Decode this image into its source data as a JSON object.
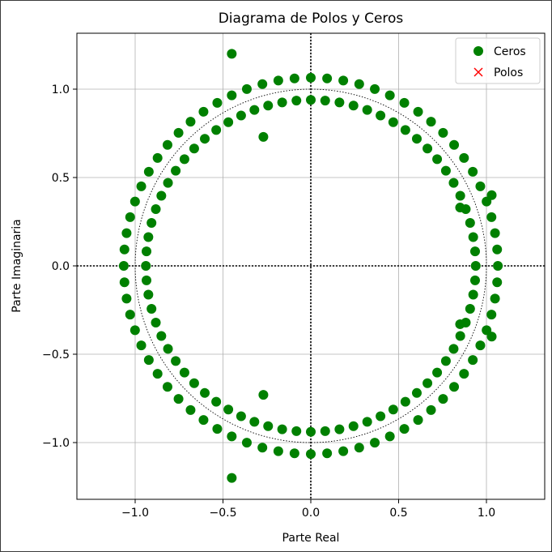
{
  "chart_data": {
    "type": "scatter",
    "title": "Diagrama de Polos y Ceros",
    "xlabel": "Parte Real",
    "ylabel": "Parte Imaginaria",
    "xlim": [
      -1.33,
      1.33
    ],
    "ylim": [
      -1.33,
      1.33
    ],
    "xticks": [
      -1.0,
      -0.5,
      0.0,
      0.5,
      1.0
    ],
    "yticks": [
      -1.0,
      -0.5,
      0.0,
      0.5,
      1.0
    ],
    "xtick_labels": [
      "−1.0",
      "−0.5",
      "0.0",
      "0.5",
      "1.0"
    ],
    "ytick_labels": [
      "−1.0",
      "−0.5",
      "0.0",
      "0.5",
      "1.0"
    ],
    "grid": true,
    "unit_circle": true,
    "legend": {
      "placement": "top-right",
      "entries": [
        {
          "label": "Ceros",
          "marker": "circle",
          "color": "#008000"
        },
        {
          "label": "Polos",
          "marker": "x",
          "color": "#ff0000"
        }
      ]
    },
    "zeros": {
      "outer_ring": {
        "radius": 1.065,
        "count": 72,
        "start_angle_deg": 0
      },
      "inner_ring": {
        "radius": 0.939,
        "count": 72,
        "start_angle_deg": 0
      },
      "extra_points": [
        [
          -0.45,
          1.2
        ],
        [
          -0.45,
          -1.2
        ],
        [
          -0.27,
          0.73
        ],
        [
          -0.27,
          -0.73
        ],
        [
          0.85,
          0.33
        ],
        [
          0.85,
          -0.33
        ],
        [
          1.03,
          0.4
        ],
        [
          1.03,
          -0.4
        ]
      ]
    },
    "poles": []
  }
}
